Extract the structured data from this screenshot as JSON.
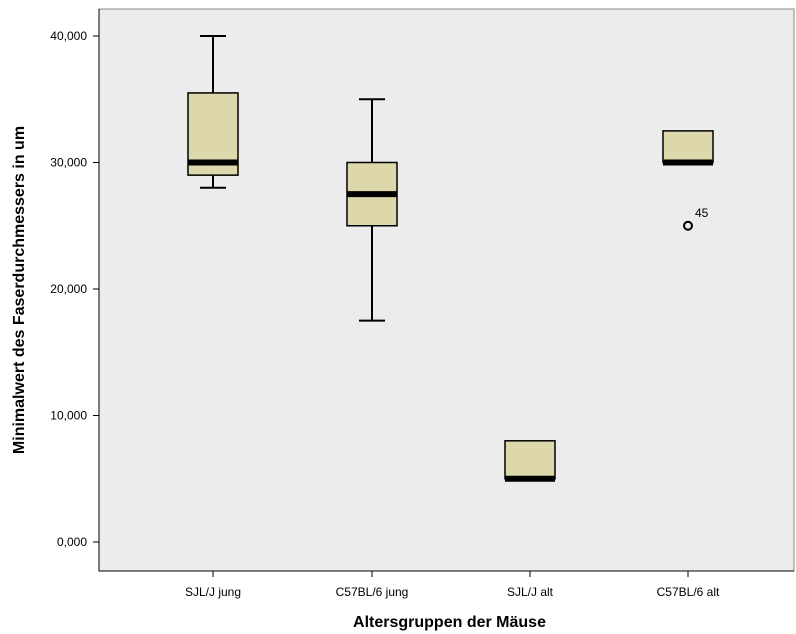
{
  "colors": {
    "plot_background": "#ececec",
    "box_fill": "#ddd8ab",
    "stroke": "#000000"
  },
  "chart_data": {
    "type": "boxplot",
    "title": "",
    "xlabel": "Altersgruppen der Mäuse",
    "ylabel": "Minimalwert des Faserdurchmessers in um",
    "ylim": [
      -2000,
      42000
    ],
    "yticks": [
      0,
      10000,
      20000,
      30000,
      40000
    ],
    "ytick_labels": [
      "0,000",
      "10,000",
      "20,000",
      "30,000",
      "40,000"
    ],
    "grid": false,
    "categories": [
      "SJL/J jung",
      "C57BL/6 jung",
      "SJL/J alt",
      "C57BL/6 alt"
    ],
    "boxes": [
      {
        "category": "SJL/J jung",
        "min": 28000,
        "q1": 29000,
        "median": 30000,
        "q3": 35500,
        "max": 40000,
        "outliers": []
      },
      {
        "category": "C57BL/6 jung",
        "min": 17500,
        "q1": 25000,
        "median": 27500,
        "q3": 30000,
        "max": 35000,
        "outliers": []
      },
      {
        "category": "SJL/J alt",
        "min": 5000,
        "q1": 5000,
        "median": 5000,
        "q3": 8000,
        "max": 8000,
        "outliers": []
      },
      {
        "category": "C57BL/6 alt",
        "min": 30000,
        "q1": 30000,
        "median": 30000,
        "q3": 32500,
        "max": 32500,
        "outliers": [
          {
            "value": 25000,
            "label": "45"
          }
        ]
      }
    ]
  }
}
